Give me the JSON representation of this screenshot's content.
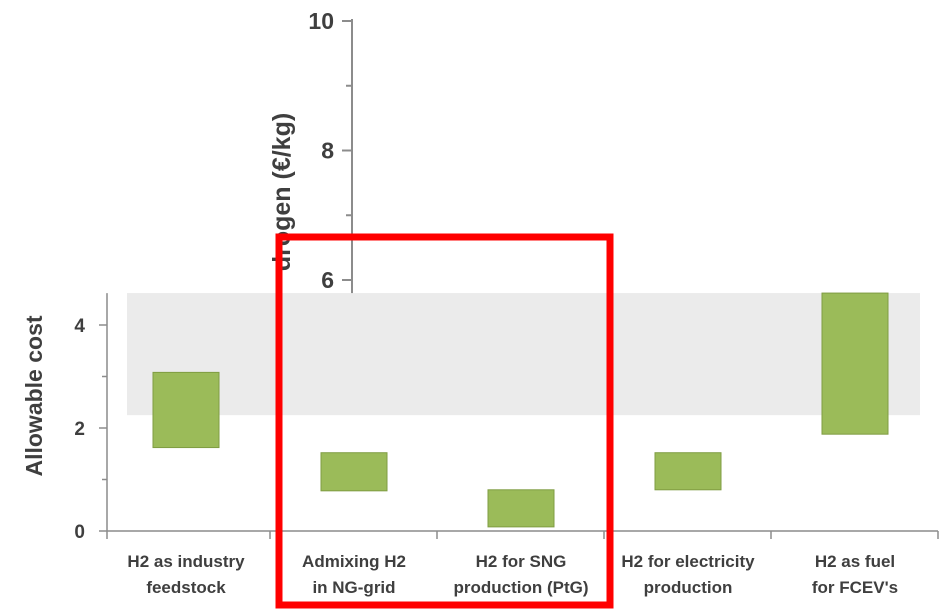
{
  "chart_data": [
    {
      "type": "bar",
      "bar_style": "floating-range",
      "categories": [
        [
          "H2 as industry",
          "feedstock"
        ],
        [
          "Admixing H2",
          "in NG-grid"
        ],
        [
          "H2 for SNG",
          "production (PtG)"
        ],
        [
          "H2 for electricity",
          "production"
        ],
        [
          "H2 as fuel",
          "for FCEV's"
        ]
      ],
      "ranges": [
        [
          1.62,
          3.08
        ],
        [
          0.78,
          1.52
        ],
        [
          0.08,
          0.8
        ],
        [
          0.8,
          1.52
        ],
        [
          1.88,
          4.62
        ]
      ],
      "ylabel": "Allowable cost",
      "ylim": [
        0,
        4.6
      ],
      "yticks": [
        "0",
        "2",
        "4"
      ],
      "reference_band": [
        2.25,
        4.62
      ],
      "grid": false,
      "colors": {
        "bar_fill": "#9bbb59",
        "bar_edge": "#7f9c42",
        "band": "#ebebeb",
        "axis": "#8c8c8c",
        "highlight_box": "#ff0000"
      }
    },
    {
      "type": "axis-fragment",
      "ylabel": "Hydrogen (€/kg)",
      "ylabel_visible": "drogen (€/kg)",
      "yticks": [
        "6",
        "8",
        "10"
      ],
      "ylim": [
        6,
        10
      ]
    }
  ]
}
